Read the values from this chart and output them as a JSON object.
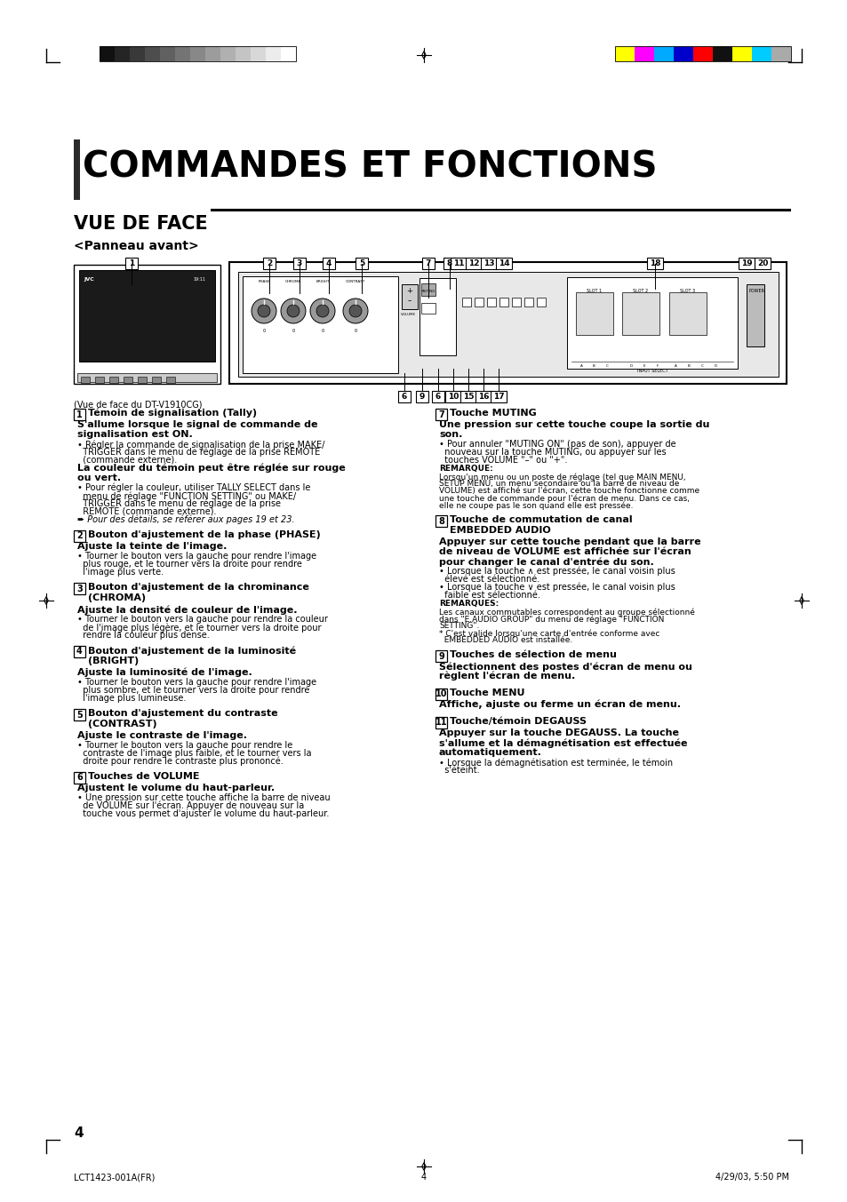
{
  "page_bg": "#ffffff",
  "title": "COMMANDES ET FONCTIONS",
  "subtitle": "VUE DE FACE",
  "subsubtitle": "<Panneau avant>",
  "footer_left": "LCT1423-001A(FR)",
  "footer_center": "4",
  "footer_right": "4/29/03, 5:50 PM",
  "page_number": "4",
  "grayscale_colors": [
    "#111111",
    "#252525",
    "#393939",
    "#4d4d4d",
    "#606060",
    "#747474",
    "#888888",
    "#9c9c9c",
    "#b0b0b0",
    "#c4c4c4",
    "#d8d8d8",
    "#ececec",
    "#ffffff"
  ],
  "color_bars": [
    "#ffff00",
    "#ff00ff",
    "#00aaff",
    "#0000cc",
    "#ff0000",
    "#111111",
    "#ffff00",
    "#00ccff",
    "#aaaaaa"
  ],
  "left_content": [
    {
      "num": "1",
      "title": "Témoin de signalisation (Tally)",
      "lines": [
        {
          "text": "S'allume lorsque le signal de commande de",
          "style": "body_bold"
        },
        {
          "text": "signalisation est ON.",
          "style": "body_bold"
        },
        {
          "text": "• Régler la commande de signalisation de la prise MAKE/",
          "style": "small"
        },
        {
          "text": "  TRIGGER dans le menu de réglage de la prise REMOTE",
          "style": "small"
        },
        {
          "text": "  (commande externe).",
          "style": "small"
        },
        {
          "text": "La couleur du témoin peut être réglée sur rouge",
          "style": "body_bold"
        },
        {
          "text": "ou vert.",
          "style": "body_bold"
        },
        {
          "text": "• Pour régler la couleur, utiliser TALLY SELECT dans le",
          "style": "small"
        },
        {
          "text": "  menu de réglage \"FUNCTION SETTING\" ou MAKE/",
          "style": "small"
        },
        {
          "text": "  TRIGGER dans le menu de réglage de la prise",
          "style": "small"
        },
        {
          "text": "  REMOTE (commande externe).",
          "style": "small"
        },
        {
          "text": "➨ Pour des détails, se référer aux pages 19 et 23.",
          "style": "arrow"
        }
      ]
    },
    {
      "num": "2",
      "title": "Bouton d'ajustement de la phase (PHASE)",
      "lines": [
        {
          "text": "Ajuste la teinte de l'image.",
          "style": "body_bold"
        },
        {
          "text": "• Tourner le bouton vers la gauche pour rendre l'image",
          "style": "small"
        },
        {
          "text": "  plus rouge, et le tourner vers la droite pour rendre",
          "style": "small"
        },
        {
          "text": "  l'image plus verte.",
          "style": "small"
        }
      ]
    },
    {
      "num": "3",
      "title": "Bouton d'ajustement de la chrominance",
      "title2": "(CHROMA)",
      "lines": [
        {
          "text": "Ajuste la densité de couleur de l'image.",
          "style": "body_bold"
        },
        {
          "text": "• Tourner le bouton vers la gauche pour rendre la couleur",
          "style": "small"
        },
        {
          "text": "  de l'image plus légère, et le tourner vers la droite pour",
          "style": "small"
        },
        {
          "text": "  rendre la couleur plus dense.",
          "style": "small"
        }
      ]
    },
    {
      "num": "4",
      "title": "Bouton d'ajustement de la luminosité",
      "title2": "(BRIGHT)",
      "lines": [
        {
          "text": "Ajuste la luminosité de l'image.",
          "style": "body_bold"
        },
        {
          "text": "• Tourner le bouton vers la gauche pour rendre l'image",
          "style": "small"
        },
        {
          "text": "  plus sombre, et le tourner vers la droite pour rendre",
          "style": "small"
        },
        {
          "text": "  l'image plus lumineuse.",
          "style": "small"
        }
      ]
    },
    {
      "num": "5",
      "title": "Bouton d'ajustement du contraste",
      "title2": "(CONTRAST)",
      "lines": [
        {
          "text": "Ajuste le contraste de l'image.",
          "style": "body_bold"
        },
        {
          "text": "• Tourner le bouton vers la gauche pour rendre le",
          "style": "small"
        },
        {
          "text": "  contraste de l'image plus faible, et le tourner vers la",
          "style": "small"
        },
        {
          "text": "  droite pour rendre le contraste plus prononcé.",
          "style": "small"
        }
      ]
    },
    {
      "num": "6",
      "title": "Touches de VOLUME",
      "lines": [
        {
          "text": "Ajustent le volume du haut-parleur.",
          "style": "body_bold"
        },
        {
          "text": "• Une pression sur cette touche affiche la barre de niveau",
          "style": "small"
        },
        {
          "text": "  de VOLUME sur l'écran. Appuyer de nouveau sur la",
          "style": "small"
        },
        {
          "text": "  touche vous permet d'ajuster le volume du haut-parleur.",
          "style": "small"
        }
      ]
    }
  ],
  "right_content": [
    {
      "num": "7",
      "title": "Touche MUTING",
      "lines": [
        {
          "text": "Une pression sur cette touche coupe la sortie du",
          "style": "body_bold"
        },
        {
          "text": "son.",
          "style": "body_bold"
        },
        {
          "text": "• Pour annuler \"MUTING ON\" (pas de son), appuyer de",
          "style": "small"
        },
        {
          "text": "  nouveau sur la touche MUTING, ou appuyer sur les",
          "style": "small"
        },
        {
          "text": "  touches VOLUME \"–\" ou \"+\".",
          "style": "small"
        },
        {
          "text": "REMARQUE:",
          "style": "remarque"
        },
        {
          "text": "Lorsqu'un menu ou un poste de réglage (tel que MAIN MENU,",
          "style": "tiny"
        },
        {
          "text": "SETUP MENU, un menu secondaire ou la barre de niveau de",
          "style": "tiny"
        },
        {
          "text": "VOLUME) est affiché sur l'écran, cette touche fonctionne comme",
          "style": "tiny"
        },
        {
          "text": "une touche de commande pour l'écran de menu. Dans ce cas,",
          "style": "tiny"
        },
        {
          "text": "elle ne coupe pas le son quand elle est pressée.",
          "style": "tiny"
        }
      ]
    },
    {
      "num": "8",
      "title": "Touche de commutation de canal",
      "title2": "EMBEDDED AUDIO",
      "lines": [
        {
          "text": "Appuyer sur cette touche pendant que la barre",
          "style": "body_bold"
        },
        {
          "text": "de niveau de VOLUME est affichée sur l'écran",
          "style": "body_bold"
        },
        {
          "text": "pour changer le canal d'entrée du son.",
          "style": "body_bold"
        },
        {
          "text": "• Lorsque la touche ∧ est pressée, le canal voisin plus",
          "style": "small"
        },
        {
          "text": "  élevé est sélectionné.",
          "style": "small"
        },
        {
          "text": "• Lorsque la touche ∨ est pressée, le canal voisin plus",
          "style": "small"
        },
        {
          "text": "  faible est sélectionné.",
          "style": "small"
        },
        {
          "text": "REMARQUES:",
          "style": "remarque"
        },
        {
          "text": "Les canaux commutables correspondent au groupe sélectionné",
          "style": "tiny"
        },
        {
          "text": "dans \"E.AUDIO GROUP\" du menu de réglage \"FUNCTION",
          "style": "tiny"
        },
        {
          "text": "SETTING\".",
          "style": "tiny"
        },
        {
          "text": "* C'est valide lorsqu'une carte d'entrée conforme avec",
          "style": "tiny"
        },
        {
          "text": "  EMBEDDED AUDIO est installée.",
          "style": "tiny"
        }
      ]
    },
    {
      "num": "9",
      "title": "Touches de sélection de menu",
      "lines": [
        {
          "text": "Sélectionnent des postes d'écran de menu ou",
          "style": "body_bold"
        },
        {
          "text": "règlent l'écran de menu.",
          "style": "body_bold"
        }
      ]
    },
    {
      "num": "10",
      "title": "Touche MENU",
      "lines": [
        {
          "text": "Affiche, ajuste ou ferme un écran de menu.",
          "style": "body_bold"
        }
      ]
    },
    {
      "num": "11",
      "title": "Touche/témoin DEGAUSS",
      "lines": [
        {
          "text": "Appuyer sur la touche DEGAUSS. La touche",
          "style": "body_bold"
        },
        {
          "text": "s'allume et la démagnétisation est effectuée",
          "style": "body_bold"
        },
        {
          "text": "automatiquement.",
          "style": "body_bold"
        },
        {
          "text": "• Lorsque la démagnétisation est terminée, le témoin",
          "style": "small"
        },
        {
          "text": "  s'éteint.",
          "style": "small"
        }
      ]
    }
  ]
}
